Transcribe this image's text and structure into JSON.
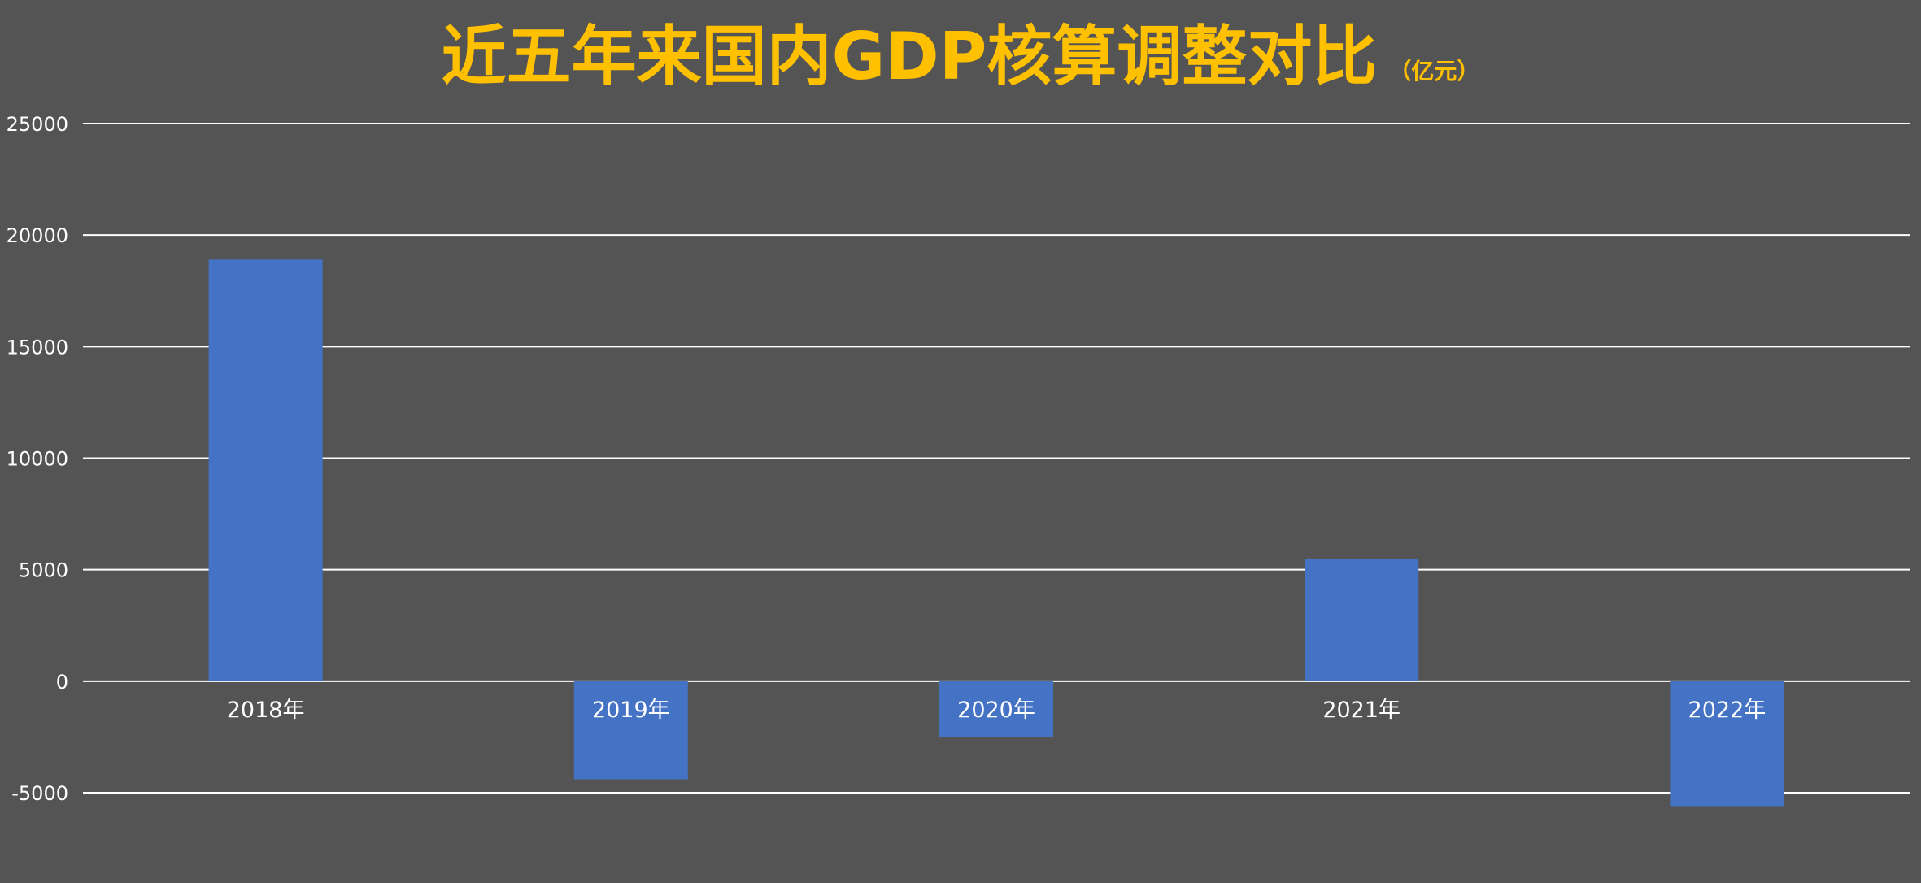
{
  "chart_data": {
    "type": "bar",
    "title": "近五年来国内GDP核算调整对比",
    "unit_label": "（亿元）",
    "categories": [
      "2018年",
      "2019年",
      "2020年",
      "2021年",
      "2022年"
    ],
    "values": [
      18900,
      -4400,
      -2500,
      5500,
      -5600
    ],
    "ylim": [
      -5000,
      25000
    ],
    "yticks": [
      25000,
      20000,
      15000,
      10000,
      5000,
      0,
      -5000
    ],
    "grid": true,
    "legend": "none"
  },
  "colors": {
    "background": "#545454",
    "bar": "#4472C4",
    "title": "#FFC000",
    "text": "#FFFFFF",
    "grid": "#FFFFFF"
  }
}
